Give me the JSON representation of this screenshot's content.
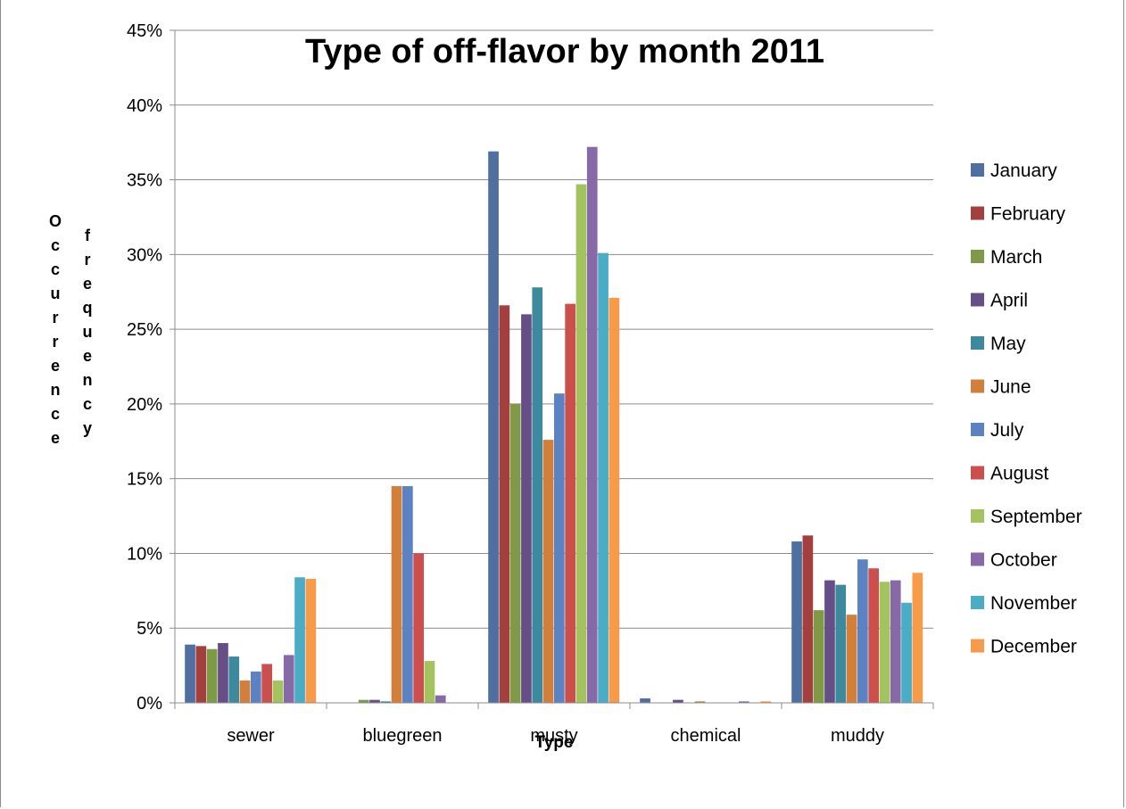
{
  "chart_data": {
    "type": "bar",
    "title": "Type of off-flavor by month 2011",
    "xlabel": "Type",
    "ylabel": "Occurence frequency",
    "ylabel_columns": [
      [
        "O",
        "c",
        "c",
        "u",
        "r",
        "r",
        "e",
        "n",
        "c",
        "e"
      ],
      [
        "f",
        "r",
        "e",
        "q",
        "u",
        "e",
        "n",
        "c",
        "y"
      ]
    ],
    "ylim": [
      0,
      45
    ],
    "y_ticks": [
      "0%",
      "5%",
      "10%",
      "15%",
      "20%",
      "25%",
      "30%",
      "35%",
      "40%",
      "45%"
    ],
    "y_tick_values": [
      0,
      5,
      10,
      15,
      20,
      25,
      30,
      35,
      40,
      45
    ],
    "grid": "horizontal",
    "legend_position": "right",
    "categories": [
      "sewer",
      "bluegreen",
      "musty",
      "chemical",
      "muddy"
    ],
    "series": [
      {
        "name": "January",
        "color": "#4f6fa0",
        "values": [
          3.9,
          0.0,
          36.9,
          0.3,
          10.8
        ]
      },
      {
        "name": "February",
        "color": "#a3403e",
        "values": [
          3.8,
          0.0,
          26.6,
          0.0,
          11.2
        ]
      },
      {
        "name": "March",
        "color": "#7f9a46",
        "values": [
          3.6,
          0.2,
          20.0,
          0.0,
          6.2
        ]
      },
      {
        "name": "April",
        "color": "#664e86",
        "values": [
          4.0,
          0.2,
          26.0,
          0.2,
          8.2
        ]
      },
      {
        "name": "May",
        "color": "#3d8a9e",
        "values": [
          3.1,
          0.1,
          27.8,
          0.0,
          7.9
        ]
      },
      {
        "name": "June",
        "color": "#d27f3b",
        "values": [
          1.5,
          14.5,
          17.6,
          0.1,
          5.9
        ]
      },
      {
        "name": "July",
        "color": "#5b82c2",
        "values": [
          2.1,
          14.5,
          20.7,
          0.0,
          9.6
        ]
      },
      {
        "name": "August",
        "color": "#cc4f4e",
        "values": [
          2.6,
          10.0,
          26.7,
          0.0,
          9.0
        ]
      },
      {
        "name": "September",
        "color": "#a2c35e",
        "values": [
          1.5,
          2.8,
          34.7,
          0.0,
          8.1
        ]
      },
      {
        "name": "October",
        "color": "#8769a8",
        "values": [
          3.2,
          0.5,
          37.2,
          0.1,
          8.2
        ]
      },
      {
        "name": "November",
        "color": "#4bacc6",
        "values": [
          8.4,
          0.0,
          30.1,
          0.0,
          6.7
        ]
      },
      {
        "name": "December",
        "color": "#f79a4a",
        "values": [
          8.3,
          0.0,
          27.1,
          0.1,
          8.7
        ]
      }
    ]
  }
}
